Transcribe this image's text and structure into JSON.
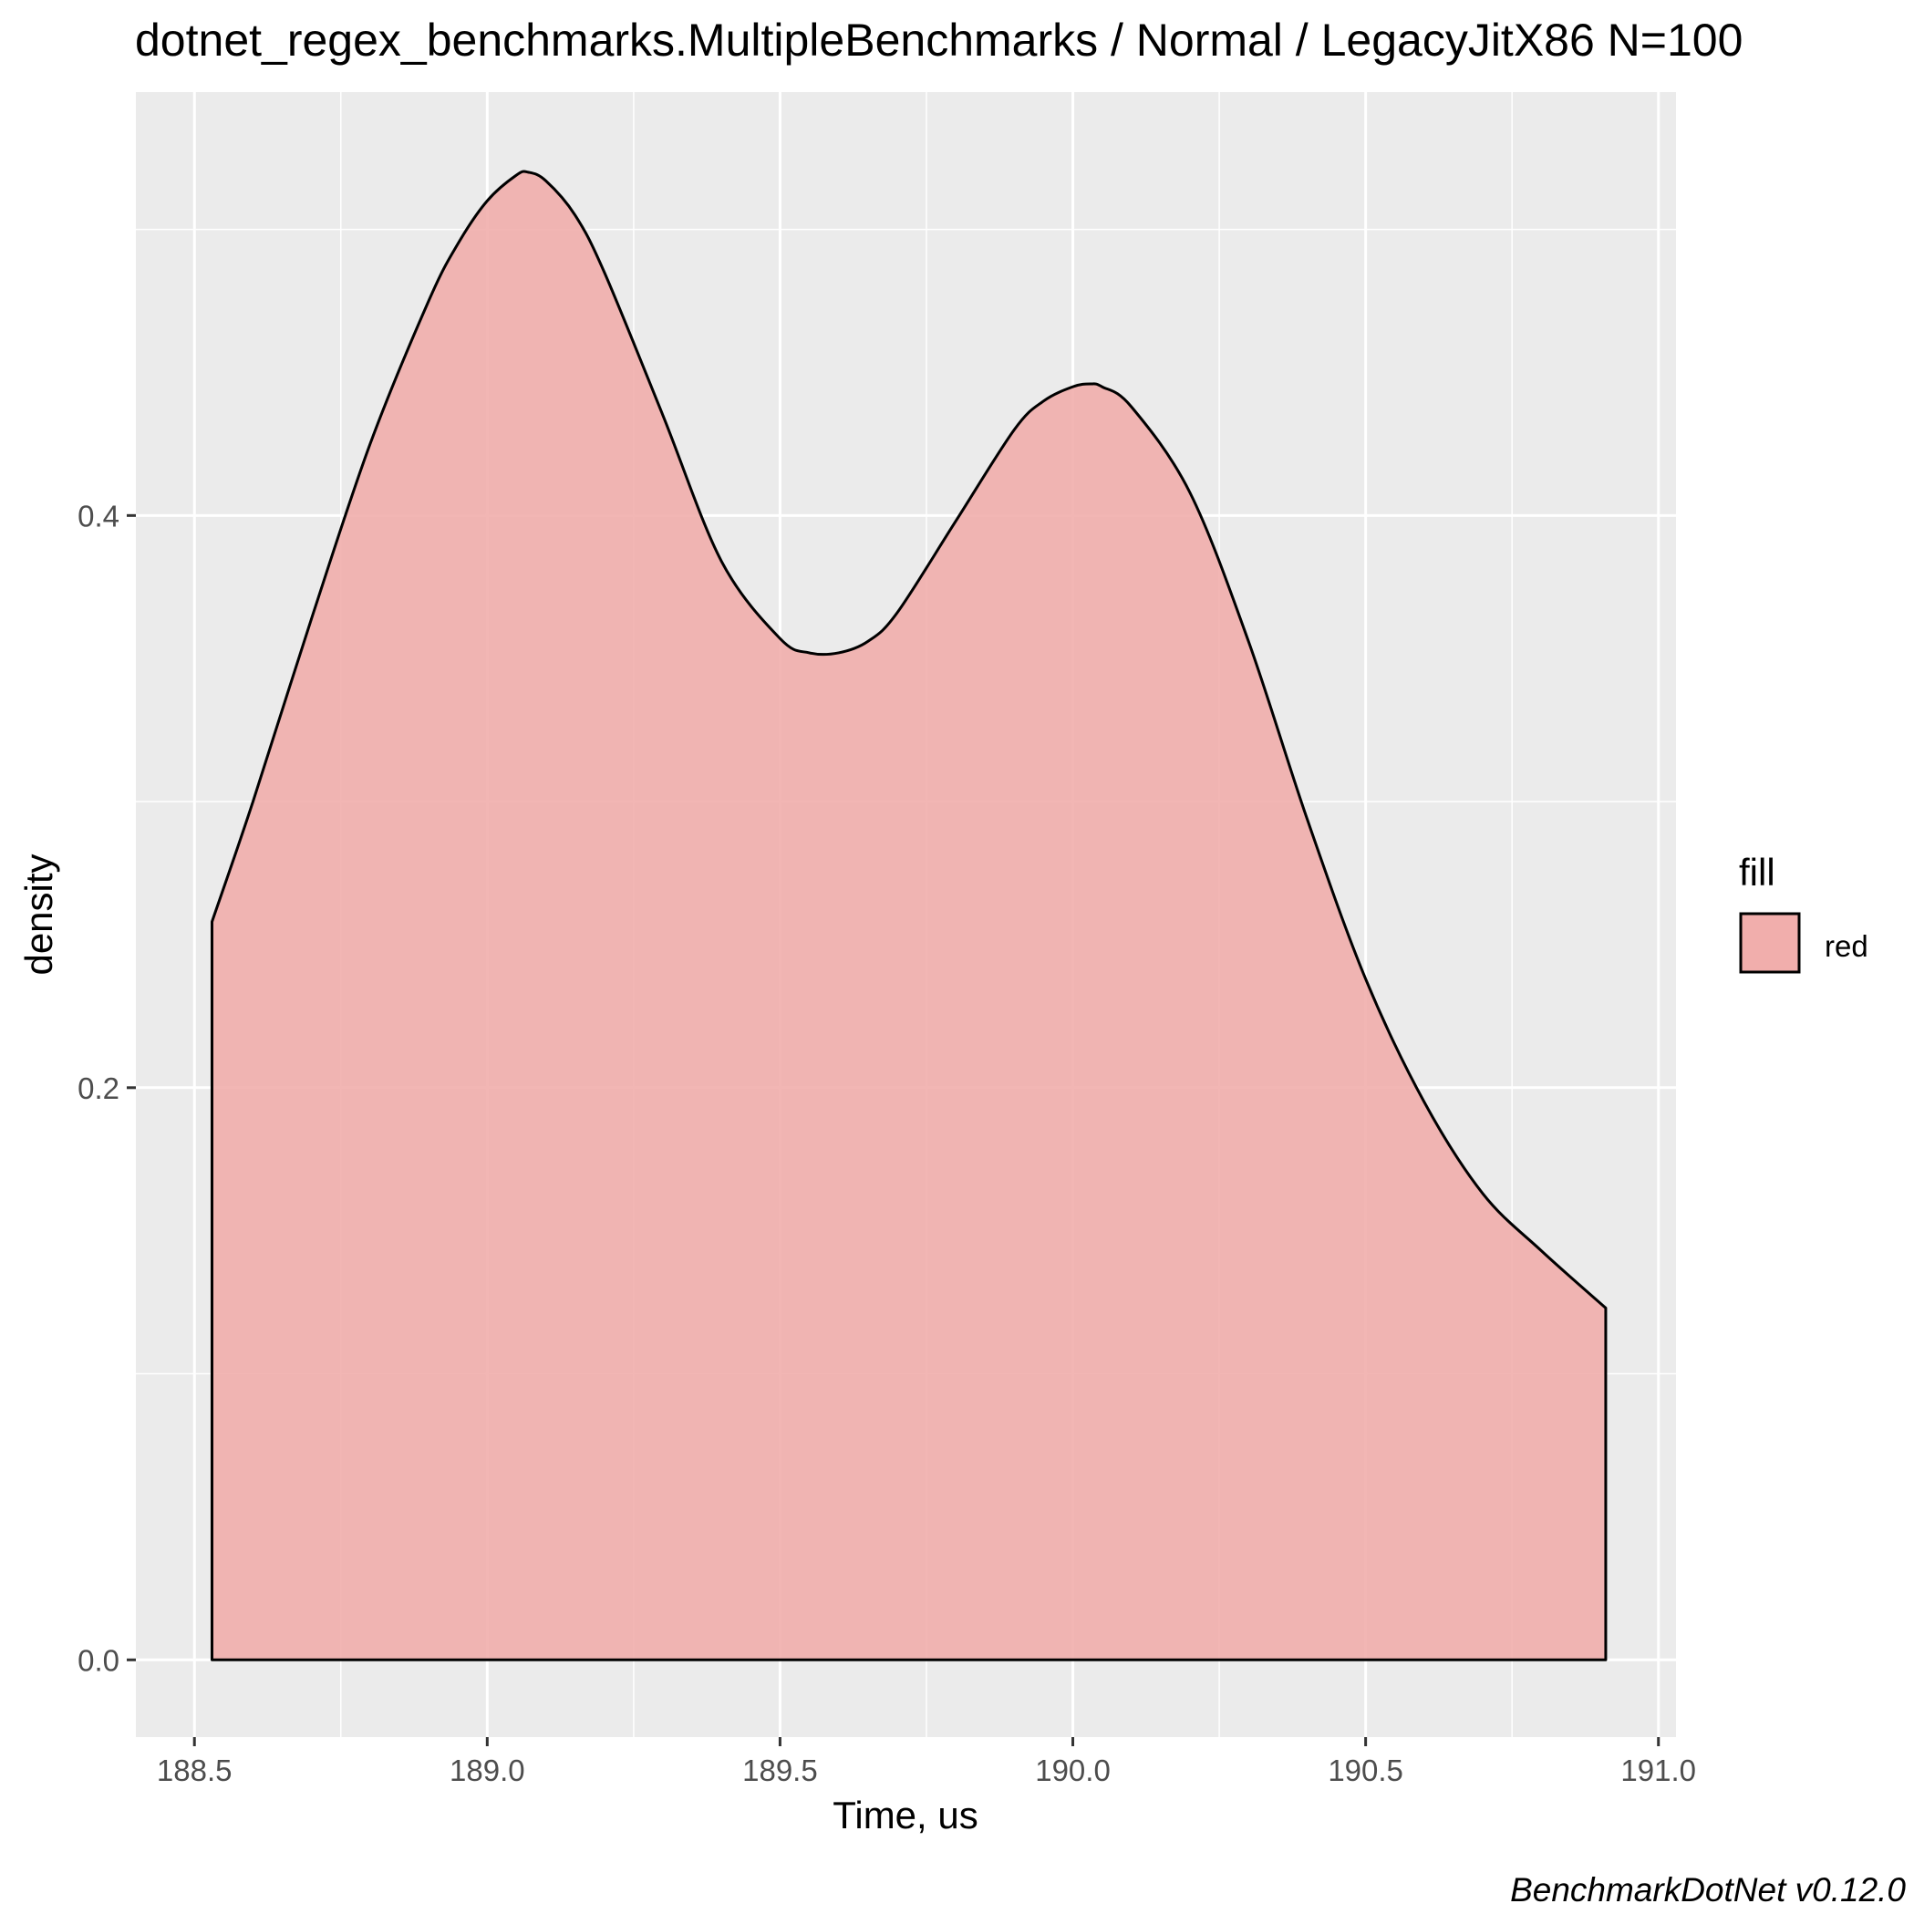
{
  "chart_data": {
    "type": "area",
    "title": "dotnet_regex_benchmarks.MultipleBenchmarks / Normal / LegacyJitX86 N=100",
    "xlabel": "Time, us",
    "ylabel": "density",
    "caption": "BenchmarkDotNet v0.12.0",
    "xlim": [
      188.4,
      191.03
    ],
    "ylim": [
      -0.027,
      0.548
    ],
    "x_ticks": [
      188.5,
      189.0,
      189.5,
      190.0,
      190.5,
      191.0
    ],
    "x_tick_labels": [
      "188.5",
      "189.0",
      "189.5",
      "190.0",
      "190.5",
      "191.0"
    ],
    "y_ticks": [
      0.0,
      0.2,
      0.4
    ],
    "y_tick_labels": [
      "0.0",
      "0.2",
      "0.4"
    ],
    "grid": true,
    "legend": {
      "title": "fill",
      "position": "right",
      "entries": [
        {
          "label": "red",
          "color": "#f1aeac"
        }
      ]
    },
    "colors": {
      "fill": "#f1aeac",
      "outline": "#000000",
      "panel": "#ebebeb",
      "grid": "#ffffff"
    },
    "series": [
      {
        "x": [
          188.53,
          188.6,
          188.7,
          188.8,
          188.9,
          188.95,
          189.0,
          189.05,
          189.07,
          189.1,
          189.15,
          189.2,
          189.3,
          189.4,
          189.5,
          189.55,
          189.6,
          189.65,
          189.7,
          189.8,
          189.9,
          189.95,
          190.0,
          190.03,
          190.05,
          190.1,
          190.2,
          190.3,
          190.4,
          190.5,
          190.6,
          190.7,
          190.8,
          190.91
        ],
        "y": [
          0.258,
          0.3,
          0.364,
          0.425,
          0.475,
          0.495,
          0.51,
          0.519,
          0.52,
          0.517,
          0.505,
          0.485,
          0.435,
          0.384,
          0.357,
          0.352,
          0.352,
          0.356,
          0.366,
          0.398,
          0.43,
          0.44,
          0.445,
          0.446,
          0.445,
          0.438,
          0.408,
          0.356,
          0.294,
          0.238,
          0.195,
          0.163,
          0.143,
          0.123
        ]
      }
    ]
  }
}
